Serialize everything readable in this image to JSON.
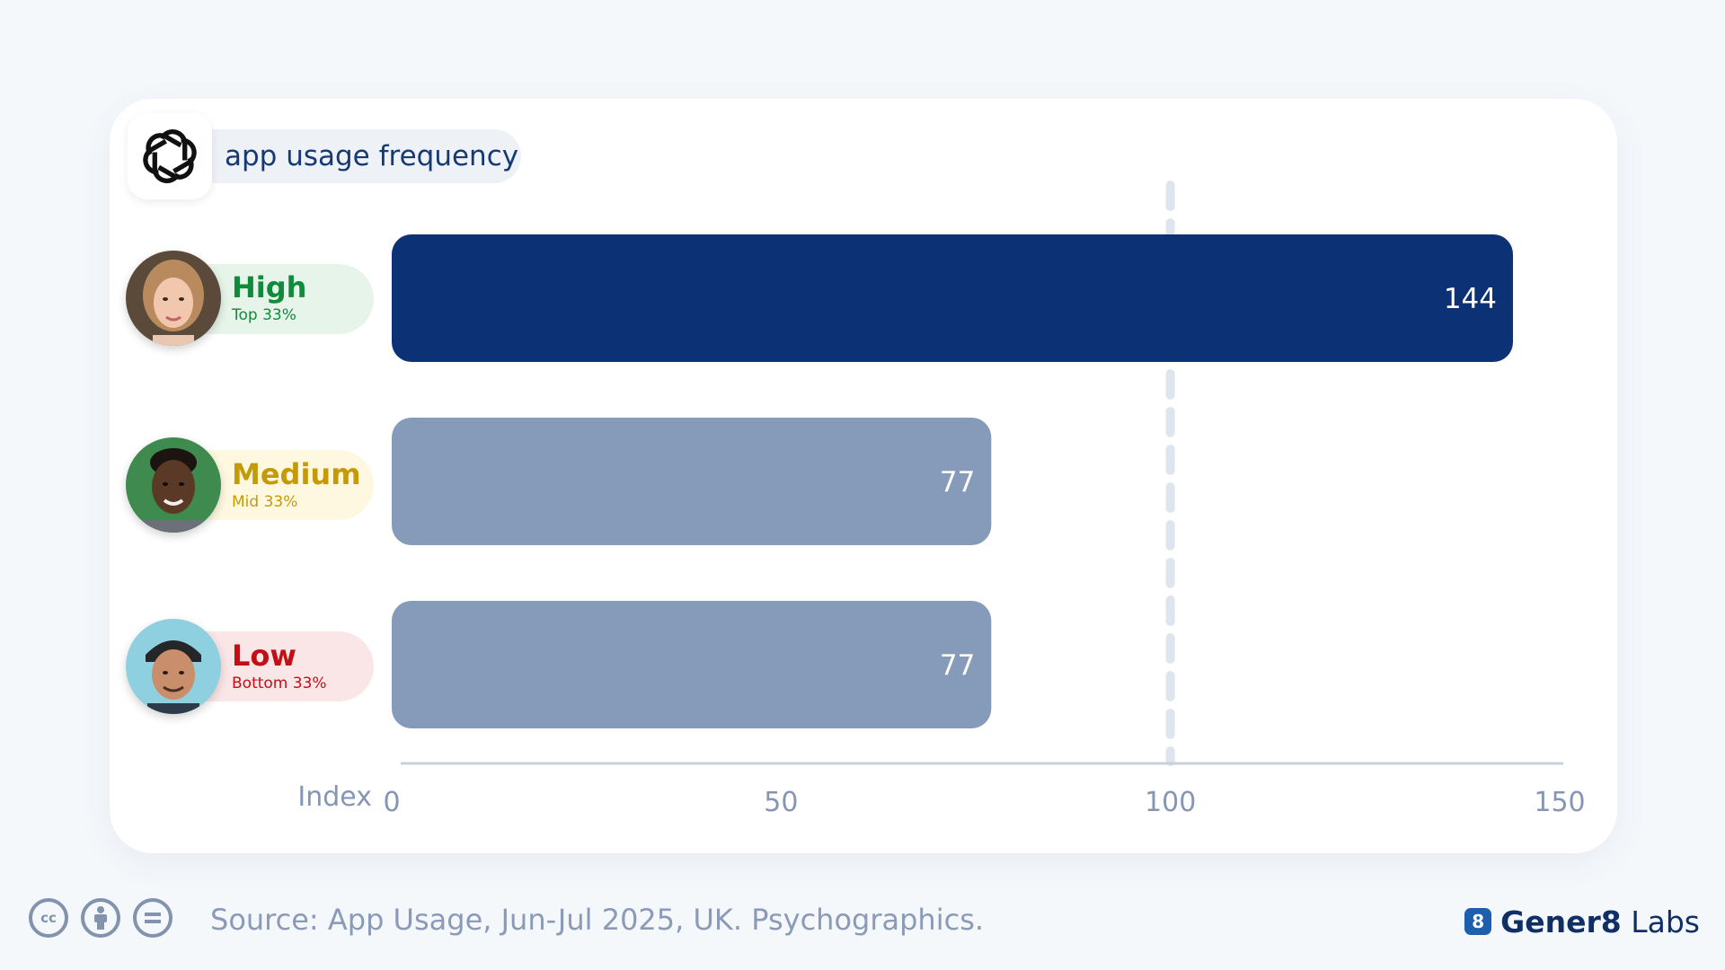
{
  "title": "app usage frequency",
  "chart_data": {
    "type": "bar",
    "orientation": "horizontal",
    "categories": [
      "High",
      "Medium",
      "Low"
    ],
    "category_subtitles": [
      "Top 33%",
      "Mid 33%",
      "Bottom 33%"
    ],
    "values": [
      144,
      77,
      77
    ],
    "value_labels": [
      "144",
      "77",
      "77"
    ],
    "xlabel": "Index",
    "xlim": [
      0,
      150
    ],
    "xticks": [
      0,
      50,
      100,
      150
    ],
    "xtick_labels": [
      "0",
      "50",
      "100",
      "150"
    ],
    "reference_line": 100,
    "grid": false,
    "legend": "none"
  },
  "colors": {
    "highlight_bar": "#0c3275",
    "other_bar": "#869bba",
    "high": "#108a3b",
    "high_bg": "#e6f4ea",
    "medium": "#c59a08",
    "medium_bg": "#fff8e1",
    "low": "#c20f16",
    "low_bg": "#fbe6e7"
  },
  "footer": {
    "source": "Source: App Usage, Jun-Jul 2025, UK. Psychographics.",
    "brand_badge": "8",
    "brand_bold": "Gener8",
    "brand_light": "Labs"
  },
  "icons": [
    "openai-logo-icon",
    "creative-commons-icon",
    "attribution-icon",
    "no-derivatives-icon",
    "gener8-badge-icon"
  ]
}
